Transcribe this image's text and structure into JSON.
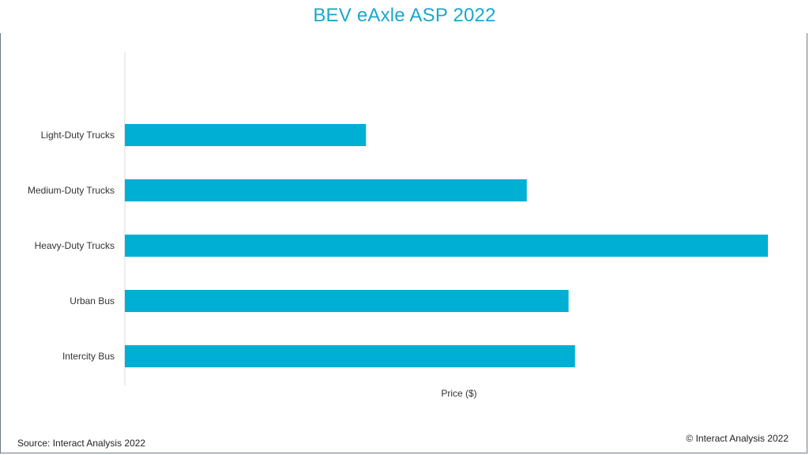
{
  "chart_data": {
    "type": "bar",
    "orientation": "horizontal",
    "title": "BEV eAxle ASP 2022",
    "categories": [
      "Light-Duty Trucks",
      "Medium-Duty Trucks",
      "Heavy-Duty Trucks",
      "Urban Bus",
      "Intercity Bus"
    ],
    "values": [
      37.5,
      62.5,
      100,
      69,
      70
    ],
    "value_note": "relative values (no axis ticks shown); Heavy-Duty Trucks = 100",
    "xlabel": "Price ($)",
    "ylabel": "",
    "xlim": [
      0,
      100
    ],
    "grid": false,
    "legend": "none",
    "bar_color": "#00b0d4"
  },
  "footer": {
    "source": "Source: Interact Analysis 2022",
    "copyright": "© Interact Analysis 2022"
  },
  "colors": {
    "title": "#1aa8c9",
    "bar": "#00b0d4",
    "axis": "#d9d9d9"
  }
}
